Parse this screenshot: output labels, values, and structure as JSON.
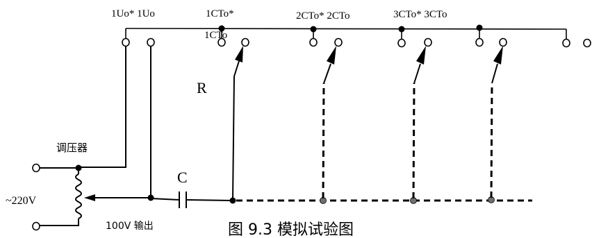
{
  "labels": {
    "terminal_1uo": "1Uo* 1Uo",
    "terminal_1cto_a": "1CTo*",
    "terminal_1cto_b": "1CTo",
    "terminal_2cto": "2CTo* 2CTo",
    "terminal_3cto": "3CTo* 3CTo",
    "resistor": "R",
    "regulator": "调压器",
    "capacitor": "C",
    "supply": "~220V",
    "output": "100V 输出",
    "caption": "图 9.3 模拟试验图"
  }
}
